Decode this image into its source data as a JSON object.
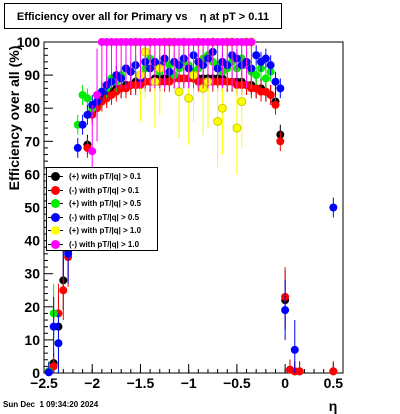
{
  "title": "Efficiency over all for Primary vs    η at pT > 0.11",
  "datestamp": "Sun Dec  1 09:34:20 2024",
  "chart_data": {
    "type": "scatter",
    "xlabel": "η",
    "ylabel": "Efficiency over all (%)",
    "xlim": [
      -2.5,
      0.6
    ],
    "ylim": [
      0,
      100
    ],
    "x_ticks": [
      -2.5,
      -2,
      -1.5,
      -1,
      -0.5,
      0,
      0.5
    ],
    "x_tick_labels": [
      "−2.5",
      "−2",
      "−1.5",
      "−1",
      "−0.5",
      "0",
      "0.5"
    ],
    "y_ticks": [
      0,
      10,
      20,
      30,
      40,
      50,
      60,
      70,
      80,
      90,
      100
    ],
    "y_tick_labels": [
      "0",
      "10",
      "20",
      "30",
      "40",
      "50",
      "60",
      "70",
      "80",
      "90",
      "100"
    ],
    "legend_position": "middle-left",
    "series": [
      {
        "name": "(+) with pT/|q| > 0.1",
        "color": "#000000",
        "x": [
          -2.45,
          -2.4,
          -2.35,
          -2.3,
          -2.25,
          -2.05,
          -2.0,
          -1.95,
          -1.9,
          -1.85,
          -1.8,
          -1.75,
          -1.7,
          -1.65,
          -1.6,
          -1.55,
          -1.5,
          -1.45,
          -1.4,
          -1.35,
          -1.3,
          -1.25,
          -1.2,
          -1.15,
          -1.1,
          -1.05,
          -1.0,
          -0.95,
          -0.9,
          -0.85,
          -0.8,
          -0.75,
          -0.7,
          -0.65,
          -0.6,
          -0.55,
          -0.5,
          -0.45,
          -0.4,
          -0.35,
          -0.3,
          -0.25,
          -0.2,
          -0.15,
          -0.1,
          -0.05,
          0.0,
          0.05,
          0.1,
          0.15,
          0.5
        ],
        "y": [
          0.5,
          3,
          14,
          28,
          37,
          69,
          79,
          81,
          83,
          84,
          85,
          86,
          86,
          87,
          87,
          88,
          88,
          88,
          88,
          89,
          89,
          89,
          89,
          89,
          89,
          89,
          89,
          89,
          89,
          89,
          89,
          89,
          89,
          89,
          88,
          88,
          88,
          88,
          87,
          87,
          86,
          86,
          85,
          84,
          82,
          72,
          22,
          1,
          0.5,
          0.5,
          0.5
        ]
      },
      {
        "name": "(-) with pT/|q| > 0.1",
        "color": "#ff0000",
        "x": [
          -2.45,
          -2.4,
          -2.35,
          -2.3,
          -2.25,
          -2.05,
          -2.0,
          -1.95,
          -1.9,
          -1.85,
          -1.8,
          -1.75,
          -1.7,
          -1.65,
          -1.6,
          -1.55,
          -1.5,
          -1.45,
          -1.4,
          -1.35,
          -1.3,
          -1.25,
          -1.2,
          -1.15,
          -1.1,
          -1.05,
          -1.0,
          -0.95,
          -0.9,
          -0.85,
          -0.8,
          -0.75,
          -0.7,
          -0.65,
          -0.6,
          -0.55,
          -0.5,
          -0.45,
          -0.4,
          -0.35,
          -0.3,
          -0.25,
          -0.2,
          -0.15,
          -0.1,
          -0.05,
          0.0,
          0.05,
          0.1,
          0.15,
          0.5
        ],
        "y": [
          0.3,
          2,
          18,
          25,
          35,
          68,
          78,
          80,
          82,
          83,
          84,
          85,
          86,
          86,
          87,
          87,
          87,
          88,
          88,
          88,
          88,
          88,
          88,
          89,
          89,
          89,
          89,
          89,
          88,
          88,
          88,
          88,
          88,
          88,
          88,
          88,
          87,
          87,
          87,
          86,
          86,
          85,
          85,
          84,
          81,
          70,
          23,
          1,
          0.5,
          0.5,
          0.5
        ]
      },
      {
        "name": "(+) with pT/|q| > 0.5",
        "color": "#00ee00",
        "x": [
          -2.45,
          -2.4,
          -2.35,
          -2.25,
          -2.15,
          -2.1,
          -2.05,
          -2.0,
          -1.95,
          -1.9,
          -1.85,
          -1.8,
          -1.75,
          -1.7,
          -1.65,
          -1.6,
          -1.55,
          -1.5,
          -1.45,
          -1.4,
          -1.35,
          -1.3,
          -1.25,
          -1.2,
          -1.15,
          -1.1,
          -1.05,
          -1.0,
          -0.95,
          -0.9,
          -0.85,
          -0.8,
          -0.75,
          -0.7,
          -0.65,
          -0.6,
          -0.55,
          -0.5,
          -0.45,
          -0.4,
          -0.35,
          -0.3,
          -0.25,
          -0.2,
          -0.15
        ],
        "y": [
          0.5,
          18,
          9,
          42,
          75,
          84,
          83,
          80,
          84,
          85,
          86,
          89,
          88,
          90,
          92,
          91,
          93,
          90,
          92,
          95,
          93,
          91,
          94,
          93,
          90,
          92,
          94,
          93,
          91,
          92,
          95,
          96,
          94,
          93,
          91,
          92,
          94,
          92,
          95,
          93,
          91,
          90,
          92,
          89,
          91
        ]
      },
      {
        "name": "(-) with pT/|q| > 0.5",
        "color": "#0000ff",
        "x": [
          -2.45,
          -2.4,
          -2.35,
          -2.3,
          -2.25,
          -2.15,
          -2.1,
          -2.05,
          -2.0,
          -1.95,
          -1.9,
          -1.85,
          -1.8,
          -1.75,
          -1.7,
          -1.65,
          -1.6,
          -1.55,
          -1.5,
          -1.45,
          -1.4,
          -1.35,
          -1.3,
          -1.25,
          -1.2,
          -1.15,
          -1.1,
          -1.05,
          -1.0,
          -0.95,
          -0.9,
          -0.85,
          -0.8,
          -0.75,
          -0.7,
          -0.65,
          -0.6,
          -0.55,
          -0.5,
          -0.45,
          -0.4,
          -0.35,
          -0.3,
          -0.25,
          -0.2,
          -0.15,
          -0.1,
          -0.05,
          0.0,
          0.1,
          0.5
        ],
        "y": [
          0.2,
          14,
          9,
          38,
          36,
          68,
          75,
          78,
          81,
          82,
          85,
          87,
          88,
          90,
          89,
          92,
          91,
          93,
          89,
          94,
          92,
          94,
          93,
          95,
          91,
          94,
          93,
          95,
          92,
          96,
          94,
          93,
          95,
          97,
          92,
          94,
          93,
          96,
          95,
          93,
          94,
          92,
          96,
          94,
          95,
          93,
          88,
          86,
          19,
          7,
          50
        ]
      },
      {
        "name": "(+) with pT/|q| > 1.0",
        "color": "#ffff00",
        "x": [
          -1.55,
          -1.5,
          -1.45,
          -1.4,
          -1.35,
          -1.3,
          -1.25,
          -1.2,
          -1.15,
          -1.1,
          -1.05,
          -1.0,
          -0.95,
          -0.9,
          -0.85,
          -0.8,
          -0.75,
          -0.7,
          -0.65,
          -0.6,
          -0.55,
          -0.5,
          -0.45,
          -0.4,
          -0.35
        ],
        "y": [
          100,
          90,
          97,
          100,
          88,
          92,
          100,
          100,
          100,
          85,
          100,
          83,
          90,
          100,
          86,
          88,
          100,
          76,
          80,
          100,
          100,
          74,
          82,
          100,
          100
        ]
      },
      {
        "name": "(-) with pT/|q| > 1.0",
        "color": "#ff00ff",
        "x": [
          -2.0,
          -1.95,
          -1.9,
          -1.85,
          -1.8,
          -1.75,
          -1.7,
          -1.65,
          -1.6,
          -1.55,
          -1.5,
          -1.45,
          -1.4,
          -1.35,
          -1.3,
          -1.25,
          -1.2,
          -1.15,
          -1.1,
          -1.05,
          -1.0,
          -0.95,
          -0.9,
          -0.85,
          -0.8,
          -0.75,
          -0.7,
          -0.65,
          -0.6,
          -0.55,
          -0.5,
          -0.45,
          -0.4,
          -0.35
        ],
        "y": [
          67,
          84,
          100,
          100,
          100,
          100,
          100,
          100,
          100,
          100,
          100,
          100,
          100,
          100,
          100,
          100,
          100,
          100,
          100,
          100,
          100,
          100,
          100,
          100,
          100,
          100,
          100,
          100,
          100,
          100,
          100,
          100,
          100,
          100
        ]
      }
    ]
  }
}
